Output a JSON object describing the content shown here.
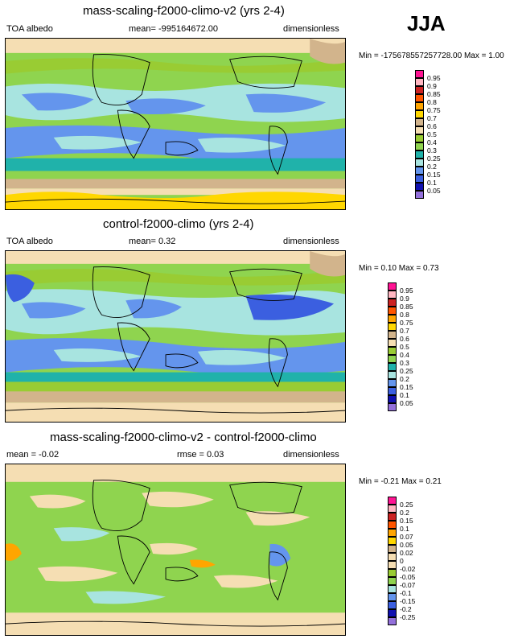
{
  "season": "JJA",
  "panels": [
    {
      "title": "mass-scaling-f2000-climo-v2 (yrs 2-4)",
      "left": "TOA albedo",
      "center": "mean= -995164672.00",
      "right": "dimensionless",
      "minmax": "Min = -175678557257728.00 Max =   1.00",
      "legend": {
        "labels": [
          "0.95",
          "0.9",
          "0.85",
          "0.8",
          "0.75",
          "0.7",
          "0.6",
          "0.5",
          "0.4",
          "0.3",
          "0.25",
          "0.2",
          "0.15",
          "0.1",
          "0.05"
        ],
        "colors": [
          "#ff1493",
          "#ffb6c1",
          "#cc2222",
          "#ff5500",
          "#ffa500",
          "#ffd700",
          "#d2b48c",
          "#f5deb3",
          "#99cc33",
          "#8fd44f",
          "#20b2aa",
          "#a8e4e0",
          "#6495ed",
          "#3b5fe0",
          "#1010b0",
          "#9370db"
        ]
      }
    },
    {
      "title": "control-f2000-climo (yrs 2-4)",
      "left": "TOA albedo",
      "center": "mean=   0.32",
      "right": "dimensionless",
      "minmax": "Min =   0.10 Max =   0.73",
      "legend": {
        "labels": [
          "0.95",
          "0.9",
          "0.85",
          "0.8",
          "0.75",
          "0.7",
          "0.6",
          "0.5",
          "0.4",
          "0.3",
          "0.25",
          "0.2",
          "0.15",
          "0.1",
          "0.05"
        ],
        "colors": [
          "#ff1493",
          "#ffb6c1",
          "#cc2222",
          "#ff5500",
          "#ffa500",
          "#ffd700",
          "#d2b48c",
          "#f5deb3",
          "#99cc33",
          "#8fd44f",
          "#20b2aa",
          "#a8e4e0",
          "#6495ed",
          "#3b5fe0",
          "#1010b0",
          "#9370db"
        ]
      }
    },
    {
      "title": "mass-scaling-f2000-climo-v2 - control-f2000-climo",
      "left": "mean =  -0.02",
      "center": "rmse =   0.03",
      "right": "dimensionless",
      "minmax": "Min =  -0.21 Max =   0.21",
      "legend": {
        "labels": [
          "0.25",
          "0.2",
          "0.15",
          "0.1",
          "0.07",
          "0.05",
          "0.02",
          "0",
          "-0.02",
          "-0.05",
          "-0.07",
          "-0.1",
          "-0.15",
          "-0.2",
          "-0.25"
        ],
        "colors": [
          "#ff1493",
          "#ffb6c1",
          "#cc2222",
          "#ff5500",
          "#ffa500",
          "#ffd700",
          "#d2b48c",
          "#f5deb3",
          "#f5deb3",
          "#99cc33",
          "#8fd44f",
          "#a8e4e0",
          "#6495ed",
          "#3b5fe0",
          "#1010b0",
          "#9370db"
        ]
      }
    }
  ]
}
